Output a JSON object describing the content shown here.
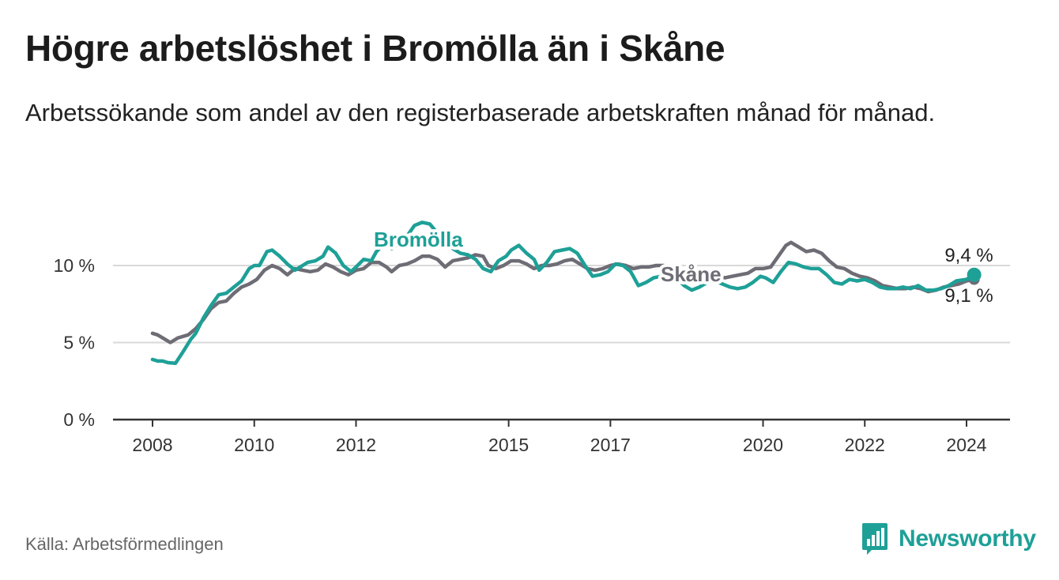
{
  "title": "Högre arbetslöshet i Bromölla än i Skåne",
  "subtitle": "Arbetssökande som andel av den registerbaserade arbetskraften månad för månad.",
  "source": "Källa: Arbetsförmedlingen",
  "brand": {
    "name": "Newsworthy",
    "icon": "newsworthy-logo-icon",
    "color": "#1ea097"
  },
  "chart_data": {
    "type": "line",
    "x_range": [
      2008,
      2024.35
    ],
    "ylim": [
      0,
      12
    ],
    "y_ticks": [
      {
        "value": 0,
        "label": "0 %"
      },
      {
        "value": 5,
        "label": "5 %"
      },
      {
        "value": 10,
        "label": "10 %"
      }
    ],
    "x_ticks": [
      {
        "value": 2008,
        "label": "2008"
      },
      {
        "value": 2010,
        "label": "2010"
      },
      {
        "value": 2012,
        "label": "2012"
      },
      {
        "value": 2015,
        "label": "2015"
      },
      {
        "value": 2017,
        "label": "2017"
      },
      {
        "value": 2020,
        "label": "2020"
      },
      {
        "value": 2022,
        "label": "2022"
      },
      {
        "value": 2024,
        "label": "2024"
      }
    ],
    "grid": true,
    "series": [
      {
        "name": "Bromölla",
        "color": "#1ea097",
        "end_label": "9,4 %",
        "points": [
          [
            2008.0,
            3.9
          ],
          [
            2008.1,
            3.8
          ],
          [
            2008.2,
            3.8
          ],
          [
            2008.3,
            3.7
          ],
          [
            2008.45,
            3.65
          ],
          [
            2008.6,
            4.4
          ],
          [
            2008.75,
            5.2
          ],
          [
            2008.85,
            5.6
          ],
          [
            2009.0,
            6.6
          ],
          [
            2009.15,
            7.4
          ],
          [
            2009.3,
            8.1
          ],
          [
            2009.45,
            8.2
          ],
          [
            2009.6,
            8.6
          ],
          [
            2009.75,
            9.0
          ],
          [
            2009.9,
            9.8
          ],
          [
            2010.0,
            10.0
          ],
          [
            2010.1,
            10.0
          ],
          [
            2010.25,
            10.9
          ],
          [
            2010.35,
            11.0
          ],
          [
            2010.5,
            10.6
          ],
          [
            2010.65,
            10.1
          ],
          [
            2010.8,
            9.7
          ],
          [
            2010.95,
            10.0
          ],
          [
            2011.05,
            10.2
          ],
          [
            2011.2,
            10.3
          ],
          [
            2011.35,
            10.6
          ],
          [
            2011.45,
            11.2
          ],
          [
            2011.6,
            10.8
          ],
          [
            2011.75,
            10.0
          ],
          [
            2011.9,
            9.6
          ],
          [
            2012.0,
            9.9
          ],
          [
            2012.15,
            10.4
          ],
          [
            2012.3,
            10.3
          ],
          [
            2012.4,
            10.9
          ],
          [
            2012.55,
            11.4
          ],
          [
            2012.7,
            11.1
          ],
          [
            2012.85,
            11.5
          ],
          [
            2013.0,
            11.9
          ],
          [
            2013.15,
            12.6
          ],
          [
            2013.3,
            12.8
          ],
          [
            2013.45,
            12.7
          ],
          [
            2013.6,
            12.1
          ],
          [
            2013.75,
            11.6
          ],
          [
            2013.9,
            11.1
          ],
          [
            2014.05,
            10.8
          ],
          [
            2014.2,
            10.7
          ],
          [
            2014.35,
            10.4
          ],
          [
            2014.5,
            9.8
          ],
          [
            2014.65,
            9.6
          ],
          [
            2014.8,
            10.3
          ],
          [
            2014.95,
            10.6
          ],
          [
            2015.05,
            11.0
          ],
          [
            2015.2,
            11.3
          ],
          [
            2015.35,
            10.8
          ],
          [
            2015.5,
            10.4
          ],
          [
            2015.6,
            9.7
          ],
          [
            2015.75,
            10.2
          ],
          [
            2015.9,
            10.9
          ],
          [
            2016.05,
            11.0
          ],
          [
            2016.2,
            11.1
          ],
          [
            2016.35,
            10.8
          ],
          [
            2016.5,
            10.0
          ],
          [
            2016.65,
            9.3
          ],
          [
            2016.8,
            9.4
          ],
          [
            2016.95,
            9.6
          ],
          [
            2017.1,
            10.1
          ],
          [
            2017.25,
            10.0
          ],
          [
            2017.4,
            9.6
          ],
          [
            2017.55,
            8.7
          ],
          [
            2017.7,
            8.9
          ],
          [
            2017.85,
            9.2
          ],
          [
            2018.0,
            9.3
          ],
          [
            2018.15,
            9.6
          ],
          [
            2018.3,
            9.2
          ],
          [
            2018.45,
            8.7
          ],
          [
            2018.6,
            8.4
          ],
          [
            2018.75,
            8.6
          ],
          [
            2018.9,
            8.9
          ],
          [
            2019.05,
            9.0
          ],
          [
            2019.2,
            8.8
          ],
          [
            2019.35,
            8.6
          ],
          [
            2019.5,
            8.5
          ],
          [
            2019.65,
            8.6
          ],
          [
            2019.8,
            8.9
          ],
          [
            2019.95,
            9.3
          ],
          [
            2020.05,
            9.2
          ],
          [
            2020.2,
            8.9
          ],
          [
            2020.35,
            9.6
          ],
          [
            2020.5,
            10.2
          ],
          [
            2020.65,
            10.1
          ],
          [
            2020.8,
            9.9
          ],
          [
            2020.95,
            9.8
          ],
          [
            2021.1,
            9.8
          ],
          [
            2021.25,
            9.4
          ],
          [
            2021.4,
            8.9
          ],
          [
            2021.55,
            8.8
          ],
          [
            2021.7,
            9.1
          ],
          [
            2021.85,
            9.0
          ],
          [
            2022.0,
            9.1
          ],
          [
            2022.15,
            8.9
          ],
          [
            2022.3,
            8.6
          ],
          [
            2022.45,
            8.5
          ],
          [
            2022.6,
            8.5
          ],
          [
            2022.75,
            8.6
          ],
          [
            2022.9,
            8.5
          ],
          [
            2023.05,
            8.7
          ],
          [
            2023.2,
            8.4
          ],
          [
            2023.35,
            8.4
          ],
          [
            2023.5,
            8.5
          ],
          [
            2023.65,
            8.7
          ],
          [
            2023.8,
            9.0
          ],
          [
            2024.0,
            9.1
          ],
          [
            2024.15,
            9.4
          ]
        ]
      },
      {
        "name": "Skåne",
        "color": "#6e6c75",
        "end_label": "9,1 %",
        "points": [
          [
            2008.0,
            5.6
          ],
          [
            2008.1,
            5.5
          ],
          [
            2008.25,
            5.2
          ],
          [
            2008.35,
            5.0
          ],
          [
            2008.5,
            5.3
          ],
          [
            2008.7,
            5.5
          ],
          [
            2008.85,
            5.9
          ],
          [
            2009.0,
            6.5
          ],
          [
            2009.15,
            7.2
          ],
          [
            2009.3,
            7.6
          ],
          [
            2009.45,
            7.7
          ],
          [
            2009.6,
            8.2
          ],
          [
            2009.75,
            8.6
          ],
          [
            2009.9,
            8.8
          ],
          [
            2010.05,
            9.1
          ],
          [
            2010.2,
            9.7
          ],
          [
            2010.35,
            10.0
          ],
          [
            2010.5,
            9.8
          ],
          [
            2010.65,
            9.4
          ],
          [
            2010.8,
            9.8
          ],
          [
            2010.95,
            9.7
          ],
          [
            2011.1,
            9.6
          ],
          [
            2011.25,
            9.7
          ],
          [
            2011.4,
            10.1
          ],
          [
            2011.55,
            9.9
          ],
          [
            2011.7,
            9.6
          ],
          [
            2011.85,
            9.4
          ],
          [
            2012.0,
            9.7
          ],
          [
            2012.15,
            9.8
          ],
          [
            2012.3,
            10.2
          ],
          [
            2012.45,
            10.2
          ],
          [
            2012.6,
            9.9
          ],
          [
            2012.7,
            9.6
          ],
          [
            2012.85,
            10.0
          ],
          [
            2013.0,
            10.1
          ],
          [
            2013.15,
            10.3
          ],
          [
            2013.3,
            10.6
          ],
          [
            2013.45,
            10.6
          ],
          [
            2013.6,
            10.4
          ],
          [
            2013.75,
            9.9
          ],
          [
            2013.9,
            10.3
          ],
          [
            2014.05,
            10.4
          ],
          [
            2014.2,
            10.5
          ],
          [
            2014.35,
            10.7
          ],
          [
            2014.5,
            10.6
          ],
          [
            2014.6,
            10.0
          ],
          [
            2014.75,
            9.8
          ],
          [
            2014.9,
            10.0
          ],
          [
            2015.05,
            10.3
          ],
          [
            2015.2,
            10.3
          ],
          [
            2015.35,
            10.1
          ],
          [
            2015.5,
            9.8
          ],
          [
            2015.65,
            10.0
          ],
          [
            2015.8,
            10.0
          ],
          [
            2015.95,
            10.1
          ],
          [
            2016.1,
            10.3
          ],
          [
            2016.25,
            10.4
          ],
          [
            2016.4,
            10.1
          ],
          [
            2016.55,
            9.8
          ],
          [
            2016.7,
            9.7
          ],
          [
            2016.85,
            9.8
          ],
          [
            2017.0,
            10.0
          ],
          [
            2017.15,
            10.1
          ],
          [
            2017.3,
            10.0
          ],
          [
            2017.45,
            9.8
          ],
          [
            2017.6,
            9.9
          ],
          [
            2017.75,
            9.9
          ],
          [
            2017.9,
            10.0
          ],
          [
            2018.05,
            10.0
          ],
          [
            2018.2,
            9.7
          ],
          [
            2018.35,
            9.4
          ],
          [
            2018.5,
            9.3
          ],
          [
            2018.65,
            9.2
          ],
          [
            2018.8,
            9.2
          ],
          [
            2018.95,
            9.2
          ],
          [
            2019.1,
            9.3
          ],
          [
            2019.25,
            9.2
          ],
          [
            2019.4,
            9.3
          ],
          [
            2019.55,
            9.4
          ],
          [
            2019.7,
            9.5
          ],
          [
            2019.85,
            9.8
          ],
          [
            2020.0,
            9.8
          ],
          [
            2020.15,
            9.9
          ],
          [
            2020.3,
            10.6
          ],
          [
            2020.45,
            11.3
          ],
          [
            2020.55,
            11.5
          ],
          [
            2020.7,
            11.2
          ],
          [
            2020.85,
            10.9
          ],
          [
            2021.0,
            11.0
          ],
          [
            2021.15,
            10.8
          ],
          [
            2021.3,
            10.3
          ],
          [
            2021.45,
            9.9
          ],
          [
            2021.6,
            9.8
          ],
          [
            2021.75,
            9.5
          ],
          [
            2021.9,
            9.3
          ],
          [
            2022.05,
            9.2
          ],
          [
            2022.2,
            9.0
          ],
          [
            2022.35,
            8.7
          ],
          [
            2022.5,
            8.6
          ],
          [
            2022.65,
            8.5
          ],
          [
            2022.8,
            8.5
          ],
          [
            2022.95,
            8.6
          ],
          [
            2023.1,
            8.5
          ],
          [
            2023.25,
            8.3
          ],
          [
            2023.4,
            8.4
          ],
          [
            2023.55,
            8.6
          ],
          [
            2023.7,
            8.7
          ],
          [
            2023.85,
            8.8
          ],
          [
            2024.0,
            9.0
          ],
          [
            2024.15,
            9.1
          ]
        ]
      }
    ],
    "annotations": [
      {
        "text": "Bromölla",
        "series": "Bromölla"
      },
      {
        "text": "Skåne",
        "series": "Skåne"
      }
    ]
  }
}
